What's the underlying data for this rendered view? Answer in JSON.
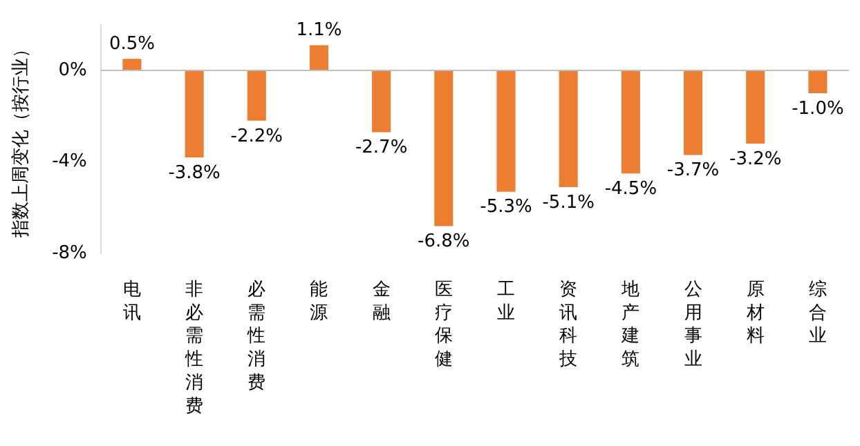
{
  "chart_data": {
    "type": "bar",
    "ylabel": "指数上周变化（按行业）",
    "categories": [
      "电讯",
      "非必需性消费",
      "必需性消费",
      "能源",
      "金融",
      "医疗保健",
      "工业",
      "资讯科技",
      "地产建筑",
      "公用事业",
      "原材料",
      "综合业"
    ],
    "values": [
      0.5,
      -3.8,
      -2.2,
      1.1,
      -2.7,
      -6.8,
      -5.3,
      -5.1,
      -4.5,
      -3.7,
      -3.2,
      -1.0
    ],
    "value_labels": [
      "0.5%",
      "-3.8%",
      "-2.2%",
      "1.1%",
      "-2.7%",
      "-6.8%",
      "-5.3%",
      "-5.1%",
      "-4.5%",
      "-3.7%",
      "-3.2%",
      "-1.0%"
    ],
    "color": "#ed7d31",
    "ylim": [
      -8,
      2
    ],
    "yticks": [
      {
        "value": 0,
        "label": "0%"
      },
      {
        "value": -4,
        "label": "-4%"
      },
      {
        "value": -8,
        "label": "-8%"
      }
    ],
    "legend": false
  }
}
